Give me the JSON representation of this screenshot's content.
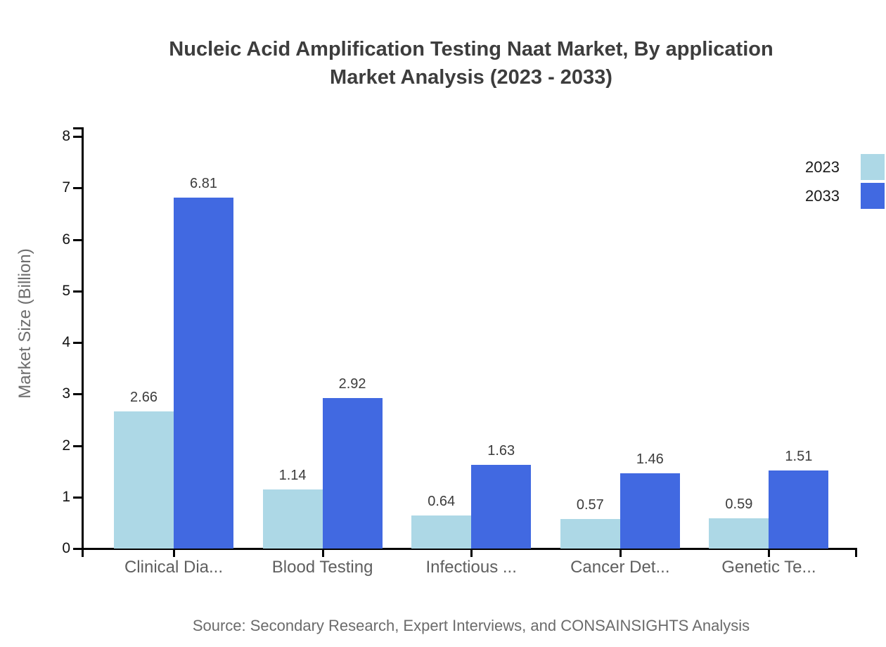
{
  "title": {
    "line1": "Nucleic Acid Amplification Testing Naat Market, By application",
    "line2": "Market Analysis (2023 - 2033)"
  },
  "source": "Source: Secondary Research, Expert Interviews, and CONSAINSIGHTS Analysis",
  "colors": {
    "series_2023": "#ADD8E6",
    "series_2033": "#4169E1",
    "axis": "#000000",
    "title_text": "#3d3d3d",
    "value_label_text": "#3c3c3c",
    "category_label_text": "#5f5f5f",
    "muted_text": "#6b6b6b"
  },
  "legend": {
    "items": [
      {
        "label": "2023",
        "color": "#ADD8E6"
      },
      {
        "label": "2033",
        "color": "#4169E1"
      }
    ]
  },
  "chart_data": {
    "type": "bar",
    "title": "Nucleic Acid Amplification Testing Naat Market, By application Market Analysis (2023 - 2033)",
    "categories": [
      "Clinical Dia...",
      "Blood Testing",
      "Infectious ...",
      "Cancer Det...",
      "Genetic Te..."
    ],
    "series": [
      {
        "name": "2023",
        "color": "#ADD8E6",
        "values": [
          2.66,
          1.14,
          0.64,
          0.57,
          0.59
        ]
      },
      {
        "name": "2033",
        "color": "#4169E1",
        "values": [
          6.81,
          2.92,
          1.63,
          1.46,
          1.51
        ]
      }
    ],
    "xlabel": "",
    "ylabel": "Market Size (Billion)",
    "ylim": [
      0,
      8
    ],
    "yticks": [
      0,
      1,
      2,
      3,
      4,
      5,
      6,
      7,
      8
    ],
    "grid": false,
    "legend_position": "top-right",
    "value_labels": true
  }
}
